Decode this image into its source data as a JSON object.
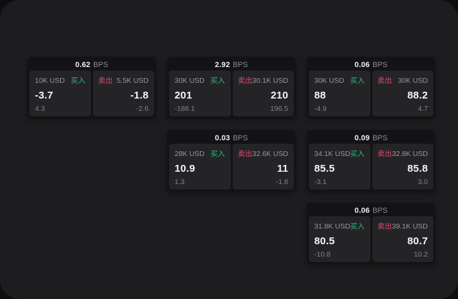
{
  "labels": {
    "bps_suffix": "BPS",
    "buy": "买入",
    "sell": "卖出"
  },
  "colors": {
    "buy_green": "#34b77f",
    "sell_red": "#dd4a6e",
    "page_bg": "#1d1d1f",
    "card_bg": "#131315",
    "panel_bg": "#242427"
  },
  "cards": [
    {
      "bps": "0.62",
      "row": 0,
      "col": 0,
      "buy": {
        "size": "10K USD",
        "value": "-3.7",
        "sub": "4.3"
      },
      "sell": {
        "size": "5.5K USD",
        "value": "-1.8",
        "sub": "-2.6"
      }
    },
    {
      "bps": "2.92",
      "row": 0,
      "col": 1,
      "buy": {
        "size": "30K USD",
        "value": "201",
        "sub": "-188.1"
      },
      "sell": {
        "size": "30.1K USD",
        "value": "210",
        "sub": "196.5"
      }
    },
    {
      "bps": "0.06",
      "row": 0,
      "col": 2,
      "buy": {
        "size": "30K USD",
        "value": "88",
        "sub": "-4.9"
      },
      "sell": {
        "size": "30K USD",
        "value": "88.2",
        "sub": "4.7"
      }
    },
    {
      "bps": "0.03",
      "row": 1,
      "col": 1,
      "buy": {
        "size": "28K USD",
        "value": "10.9",
        "sub": "1.3"
      },
      "sell": {
        "size": "32.6K USD",
        "value": "11",
        "sub": "-1.8"
      }
    },
    {
      "bps": "0.09",
      "row": 1,
      "col": 2,
      "buy": {
        "size": "34.1K USD",
        "value": "85.5",
        "sub": "-3.1"
      },
      "sell": {
        "size": "32.8K USD",
        "value": "85.8",
        "sub": "3.0"
      }
    },
    {
      "bps": "0.06",
      "row": 2,
      "col": 2,
      "buy": {
        "size": "31.8K USD",
        "value": "80.5",
        "sub": "-10.8"
      },
      "sell": {
        "size": "39.1K USD",
        "value": "80.7",
        "sub": "10.2"
      }
    }
  ]
}
